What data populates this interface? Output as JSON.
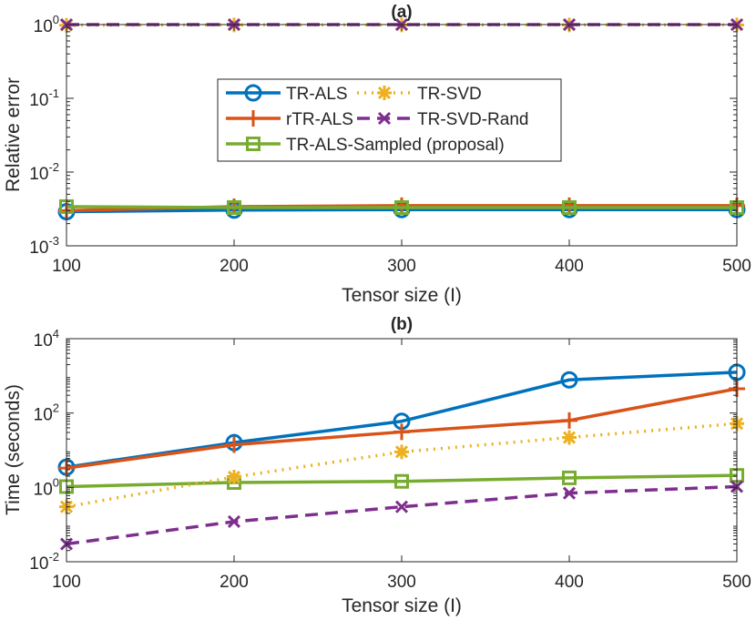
{
  "chart_data": [
    {
      "type": "line",
      "title": "(a)",
      "xlabel": "Tensor size (I)",
      "ylabel": "Relative error",
      "yscale": "log",
      "xlim": [
        100,
        500
      ],
      "ylim": [
        0.001,
        1
      ],
      "x": [
        100,
        200,
        300,
        400,
        500
      ],
      "xticks": [
        "100",
        "200",
        "300",
        "400",
        "500"
      ],
      "yticks": [
        {
          "base": "10",
          "exp": "-3",
          "value": 0.001
        },
        {
          "base": "10",
          "exp": "-2",
          "value": 0.01
        },
        {
          "base": "10",
          "exp": "-1",
          "value": 0.1
        },
        {
          "base": "10",
          "exp": "0",
          "value": 1
        }
      ],
      "legend_position": "center",
      "series": [
        {
          "name": "TR-ALS",
          "values": [
            0.0029,
            0.00305,
            0.0031,
            0.0031,
            0.0031
          ]
        },
        {
          "name": "rTR-ALS",
          "values": [
            0.003,
            0.0034,
            0.0035,
            0.0035,
            0.0035
          ]
        },
        {
          "name": "TR-ALS-Sampled (proposal)",
          "values": [
            0.0034,
            0.0033,
            0.0033,
            0.0033,
            0.0033
          ]
        },
        {
          "name": "TR-SVD",
          "values": [
            0.98,
            0.99,
            0.99,
            0.99,
            0.99
          ]
        },
        {
          "name": "TR-SVD-Rand",
          "values": [
            1.0,
            1.0,
            1.0,
            1.0,
            1.0
          ]
        }
      ]
    },
    {
      "type": "line",
      "title": "(b)",
      "xlabel": "Tensor size (I)",
      "ylabel": "Time (seconds)",
      "yscale": "log",
      "xlim": [
        100,
        500
      ],
      "ylim": [
        0.01,
        10000
      ],
      "x": [
        100,
        200,
        300,
        400,
        500
      ],
      "xticks": [
        "100",
        "200",
        "300",
        "400",
        "500"
      ],
      "yticks": [
        {
          "base": "10",
          "exp": "-2",
          "value": 0.01
        },
        {
          "base": "10",
          "exp": "0",
          "value": 1
        },
        {
          "base": "10",
          "exp": "2",
          "value": 100
        },
        {
          "base": "10",
          "exp": "4",
          "value": 10000
        }
      ],
      "series": [
        {
          "name": "TR-ALS",
          "values": [
            3.5,
            16,
            60,
            780,
            1250
          ]
        },
        {
          "name": "rTR-ALS",
          "values": [
            3.3,
            14,
            31,
            63,
            450
          ]
        },
        {
          "name": "TR-ALS-Sampled (proposal)",
          "values": [
            1.05,
            1.35,
            1.45,
            1.8,
            2.1
          ]
        },
        {
          "name": "TR-SVD",
          "values": [
            0.3,
            1.9,
            9,
            22,
            52
          ]
        },
        {
          "name": "TR-SVD-Rand",
          "values": [
            0.03,
            0.12,
            0.3,
            0.7,
            1.05
          ]
        }
      ]
    }
  ],
  "series_style": {
    "TR-ALS": {
      "color": "#0072BD",
      "dash": "solid",
      "marker": "circle"
    },
    "rTR-ALS": {
      "color": "#D95319",
      "dash": "solid",
      "marker": "plus"
    },
    "TR-ALS-Sampled (proposal)": {
      "color": "#77AC30",
      "dash": "solid",
      "marker": "square"
    },
    "TR-SVD": {
      "color": "#EDB120",
      "dash": "dotted",
      "marker": "asterisk"
    },
    "TR-SVD-Rand": {
      "color": "#7E2F8E",
      "dash": "dashed",
      "marker": "x"
    }
  },
  "legend_order": [
    "TR-ALS",
    "TR-SVD",
    "rTR-ALS",
    "TR-SVD-Rand",
    "TR-ALS-Sampled (proposal)"
  ]
}
